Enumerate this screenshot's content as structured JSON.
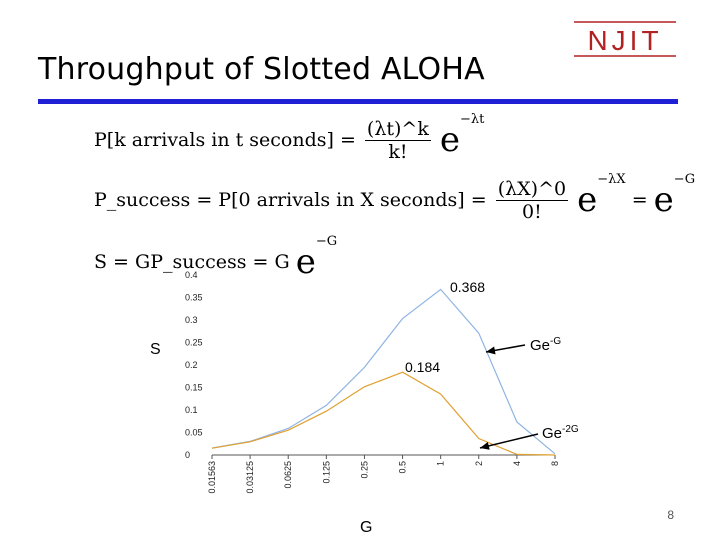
{
  "logo": {
    "text": "NJIT",
    "color": "#b22222"
  },
  "slide": {
    "title": "Throughput of Slotted ALOHA",
    "page_number": "8"
  },
  "equations": {
    "eq1_left": "P[k arrivals in t seconds] =",
    "eq1_num": "(λt)^k",
    "eq1_den": "k!",
    "eq1_exp": "−λt",
    "eq2_left": "P_success = P[0 arrivals in X seconds] =",
    "eq2_num": "(λX)^0",
    "eq2_den": "0!",
    "eq2_exp": "−λX",
    "eq2_mid": "=",
    "eq2_exp2": "−G",
    "eq3_left": "S = GP_success = G",
    "eq3_exp": "−G"
  },
  "chart_data": {
    "type": "line",
    "x_scale": "log2",
    "categories": [
      "0.01563",
      "0.03125",
      "0.0625",
      "0.125",
      "0.25",
      "0.5",
      "1",
      "2",
      "4",
      "8"
    ],
    "x": [
      0.015625,
      0.03125,
      0.0625,
      0.125,
      0.25,
      0.5,
      1,
      2,
      4,
      8
    ],
    "ylim": [
      0,
      0.4
    ],
    "yticks": [
      "0",
      "0.05",
      "0.1",
      "0.15",
      "0.2",
      "0.25",
      "0.3",
      "0.35",
      "0.4"
    ],
    "ylabel": "S",
    "xlabel": "G",
    "series": [
      {
        "name": "Ge-G",
        "label_base": "Ge",
        "label_exp": "-G",
        "color": "#8eb4e3",
        "values": [
          0.0154,
          0.0303,
          0.0588,
          0.1103,
          0.1947,
          0.3033,
          0.3679,
          0.2707,
          0.0733,
          0.0027
        ]
      },
      {
        "name": "Ge-2G",
        "label_base": "Ge",
        "label_exp": "-2G",
        "color": "#e0a030",
        "values": [
          0.0152,
          0.0294,
          0.0551,
          0.0974,
          0.1516,
          0.1839,
          0.1353,
          0.0366,
          0.0013,
          0.0
        ]
      }
    ],
    "annotations": [
      {
        "text": "0.368"
      },
      {
        "text": "0.184"
      }
    ]
  }
}
